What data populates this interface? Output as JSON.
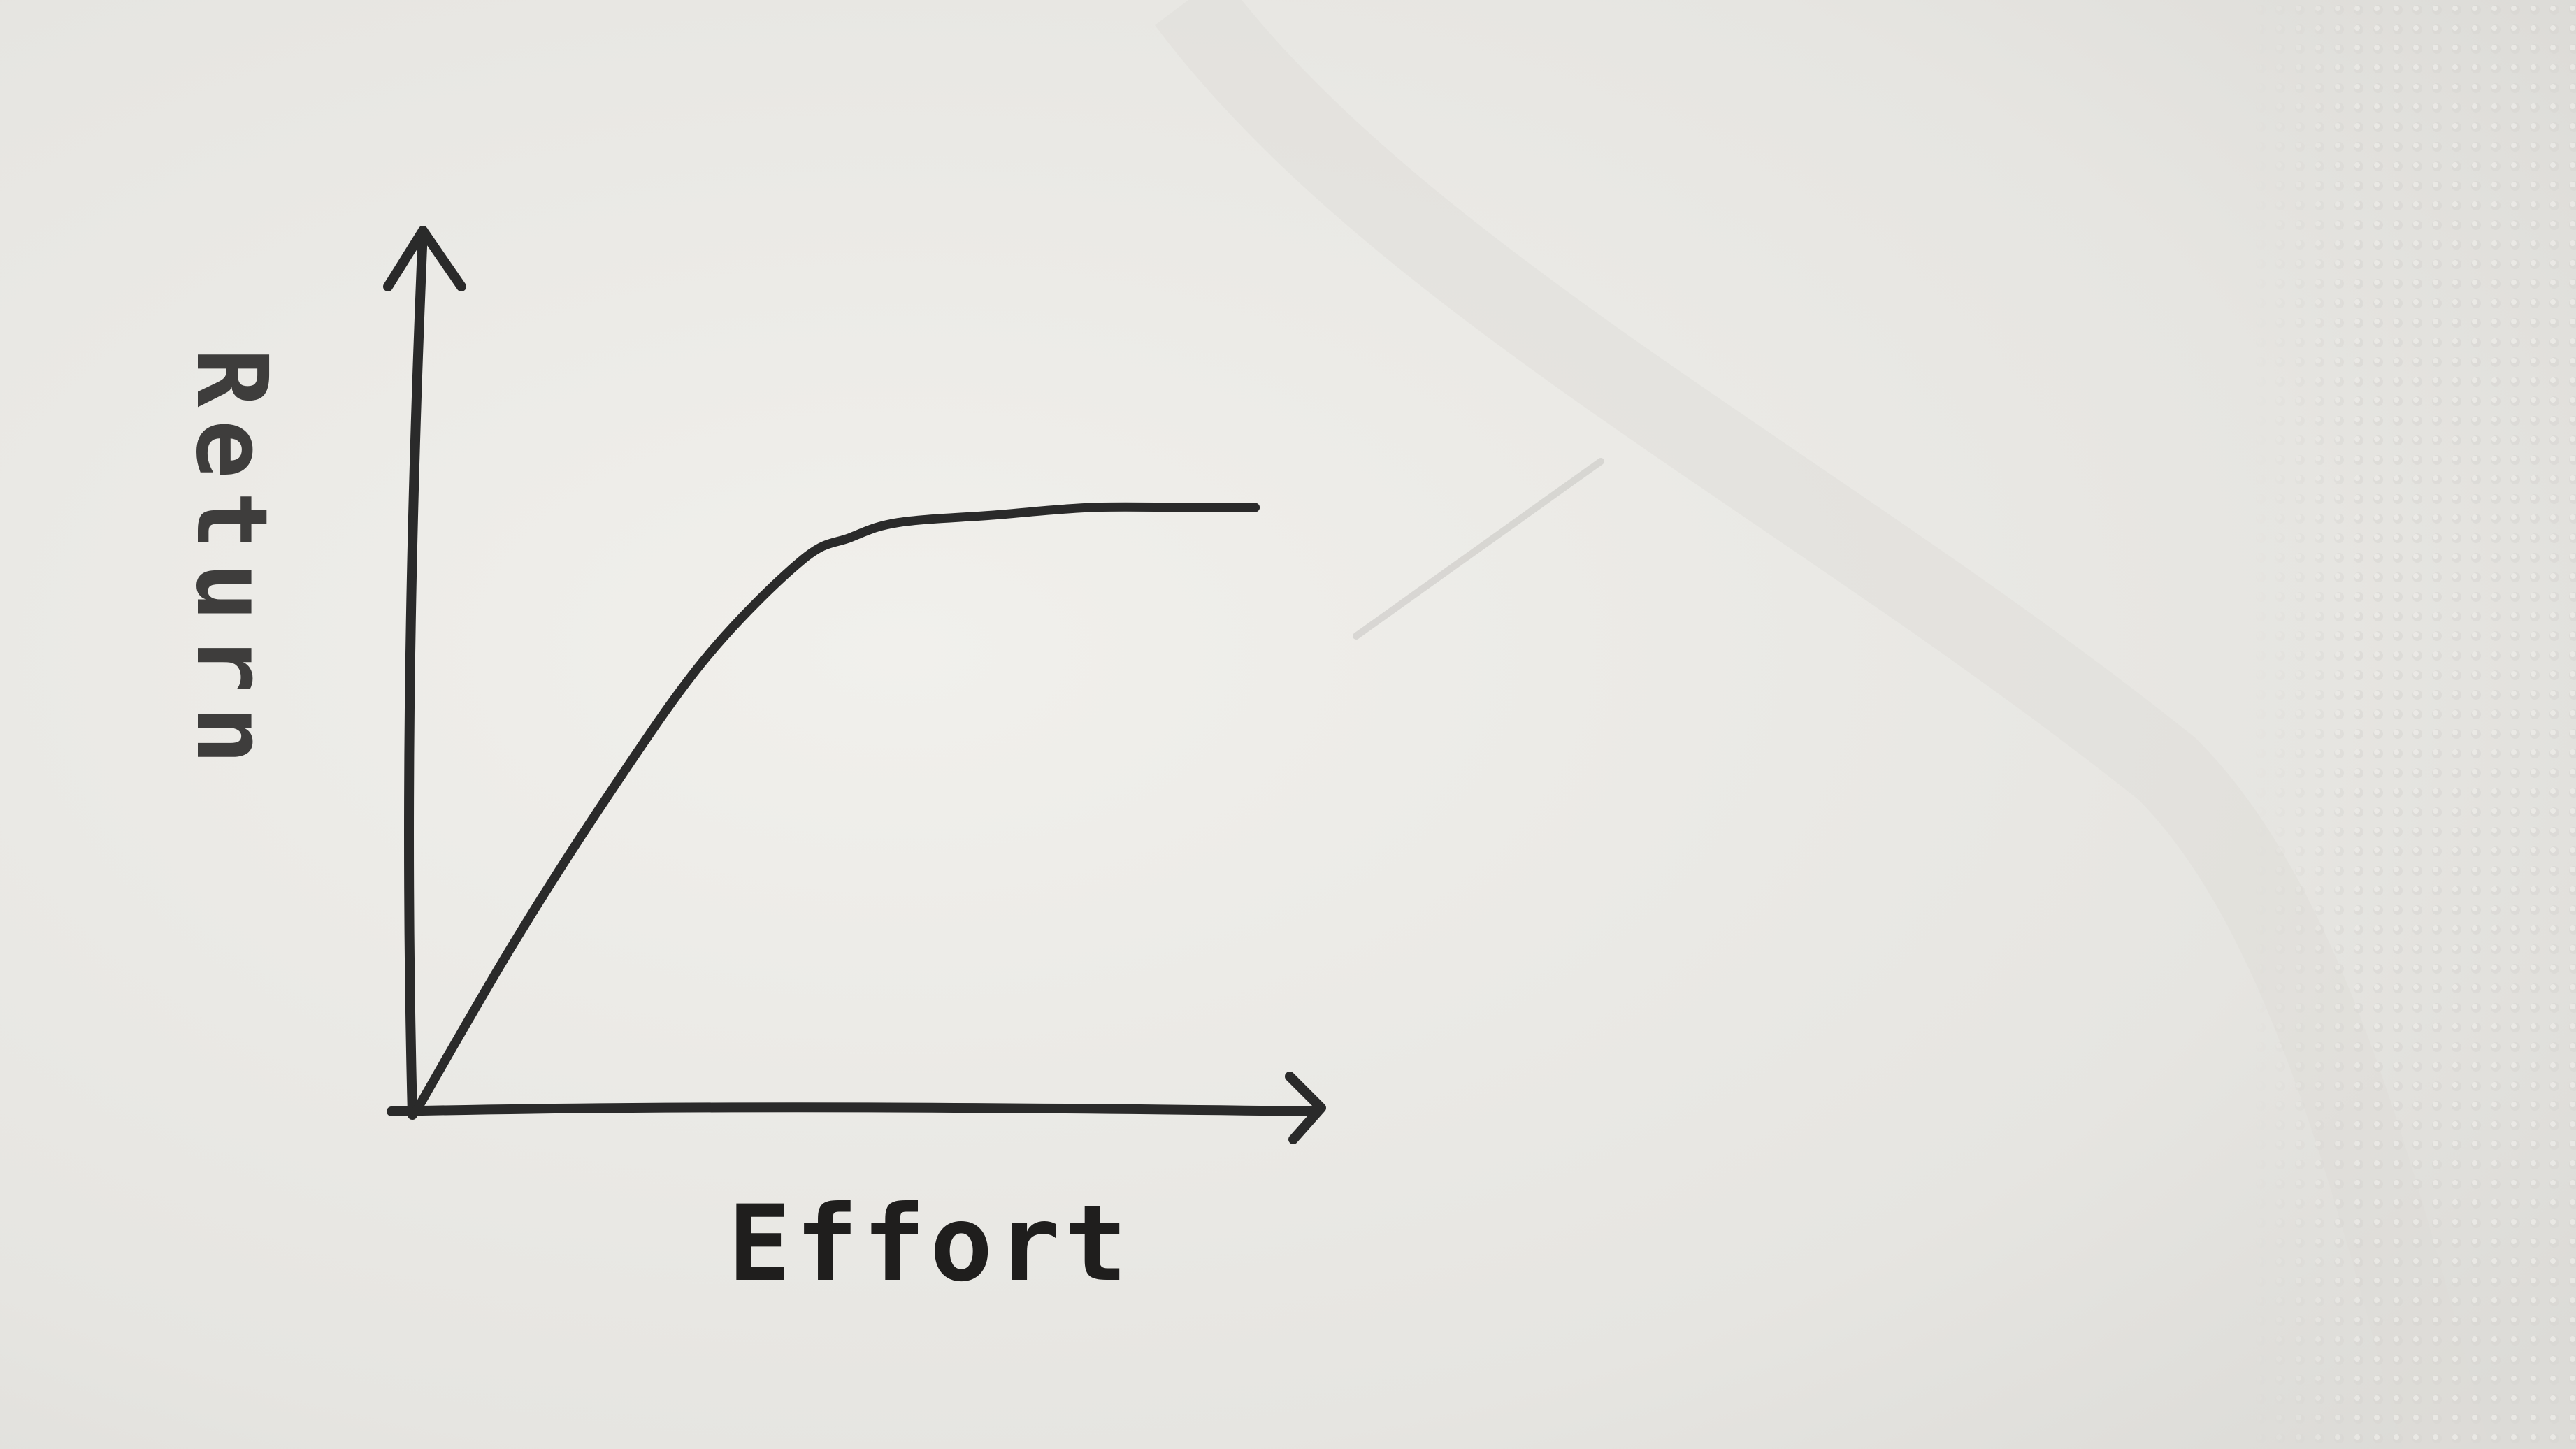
{
  "chart_data": {
    "type": "line",
    "title": "",
    "xlabel": "Effort",
    "ylabel": "Return",
    "grid": false,
    "series": [
      {
        "x": [
          0,
          0.1,
          0.2,
          0.3,
          0.4,
          0.45,
          0.5,
          0.6,
          0.7,
          0.8,
          0.87
        ],
        "values": [
          0,
          0.22,
          0.42,
          0.6,
          0.73,
          0.76,
          0.78,
          0.79,
          0.8,
          0.8,
          0.8
        ]
      }
    ],
    "xlim": [
      0,
      1
    ],
    "ylim": [
      0,
      1
    ],
    "line_color": "#2a2a2a",
    "paper_color": "#ecebe7"
  }
}
